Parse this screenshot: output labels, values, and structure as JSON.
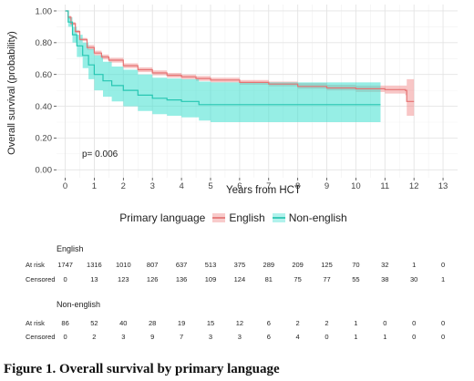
{
  "chart_data": {
    "type": "line",
    "xlabel": "Years from HCT",
    "ylabel": "Overall survival (probability)",
    "xlim": [
      -0.3,
      13.5
    ],
    "ylim": [
      -0.05,
      1.04
    ],
    "x_ticks": [
      0,
      1,
      2,
      3,
      4,
      5,
      6,
      7,
      8,
      9,
      10,
      11,
      12,
      13
    ],
    "x_tick_labels": [
      "0",
      "1",
      "2",
      "3",
      "4",
      "5",
      "6",
      "7",
      "8",
      "9",
      "10",
      "11",
      "12",
      "13"
    ],
    "y_ticks": [
      0,
      0.2,
      0.4,
      0.6,
      0.8,
      1.0
    ],
    "y_tick_labels": [
      "0.00",
      "0.20",
      "0.40",
      "0.60",
      "0.80",
      "1.00"
    ],
    "grid": true,
    "annotation": "p= 0.006",
    "legend_title": "Primary language",
    "legend_position": "bottom",
    "series": [
      {
        "name": "English",
        "color": "#e57373",
        "band_color": "#f08080",
        "x": [
          0,
          0.1,
          0.2,
          0.35,
          0.5,
          0.75,
          1,
          1.25,
          1.5,
          2,
          2.5,
          3,
          3.5,
          4,
          4.5,
          5,
          6,
          7,
          8,
          9,
          10,
          11,
          11.7,
          11.75,
          12
        ],
        "y": [
          1.0,
          0.96,
          0.92,
          0.87,
          0.82,
          0.77,
          0.735,
          0.71,
          0.69,
          0.655,
          0.63,
          0.61,
          0.595,
          0.585,
          0.575,
          0.565,
          0.55,
          0.54,
          0.525,
          0.515,
          0.51,
          0.505,
          0.5,
          0.43,
          0.43
        ],
        "lower": [
          1.0,
          0.95,
          0.91,
          0.86,
          0.81,
          0.755,
          0.72,
          0.695,
          0.675,
          0.64,
          0.615,
          0.595,
          0.58,
          0.57,
          0.56,
          0.55,
          0.535,
          0.525,
          0.51,
          0.5,
          0.49,
          0.48,
          0.47,
          0.34,
          0.34
        ],
        "upper": [
          1.0,
          0.97,
          0.93,
          0.88,
          0.83,
          0.785,
          0.75,
          0.725,
          0.705,
          0.67,
          0.645,
          0.625,
          0.61,
          0.6,
          0.59,
          0.58,
          0.565,
          0.555,
          0.545,
          0.535,
          0.53,
          0.53,
          0.53,
          0.57,
          0.57
        ]
      },
      {
        "name": "Non-english",
        "color": "#26c6b2",
        "band_color": "#40e0d0",
        "x": [
          0,
          0.1,
          0.25,
          0.4,
          0.6,
          0.8,
          1,
          1.3,
          1.6,
          2,
          2.5,
          3,
          3.5,
          4,
          4.6,
          5,
          6,
          7,
          8,
          9,
          10,
          10.85
        ],
        "y": [
          1.0,
          0.93,
          0.85,
          0.78,
          0.72,
          0.66,
          0.6,
          0.56,
          0.53,
          0.5,
          0.47,
          0.45,
          0.44,
          0.43,
          0.41,
          0.41,
          0.41,
          0.41,
          0.41,
          0.41,
          0.41,
          0.41
        ],
        "lower": [
          1.0,
          0.9,
          0.8,
          0.71,
          0.64,
          0.57,
          0.5,
          0.46,
          0.43,
          0.4,
          0.37,
          0.35,
          0.34,
          0.33,
          0.31,
          0.3,
          0.3,
          0.3,
          0.3,
          0.3,
          0.3,
          0.3
        ],
        "upper": [
          1.0,
          0.96,
          0.9,
          0.85,
          0.8,
          0.76,
          0.72,
          0.68,
          0.65,
          0.63,
          0.6,
          0.58,
          0.575,
          0.57,
          0.555,
          0.55,
          0.55,
          0.55,
          0.55,
          0.55,
          0.55,
          0.55
        ]
      }
    ]
  },
  "risk_table": {
    "time_points": [
      0,
      1,
      2,
      3,
      4,
      5,
      6,
      7,
      8,
      9,
      10,
      11,
      12,
      13
    ],
    "groups": [
      {
        "title": "English",
        "rows": [
          {
            "label": "At risk",
            "values": [
              "1747",
              "1316",
              "1010",
              "807",
              "637",
              "513",
              "375",
              "289",
              "209",
              "125",
              "70",
              "32",
              "1",
              "0"
            ]
          },
          {
            "label": "Censored",
            "values": [
              "0",
              "13",
              "123",
              "126",
              "136",
              "109",
              "124",
              "81",
              "75",
              "77",
              "55",
              "38",
              "30",
              "1"
            ]
          }
        ]
      },
      {
        "title": "Non-english",
        "rows": [
          {
            "label": "At risk",
            "values": [
              "86",
              "52",
              "40",
              "28",
              "19",
              "15",
              "12",
              "6",
              "2",
              "2",
              "1",
              "0",
              "0",
              "0"
            ]
          },
          {
            "label": "Censored",
            "values": [
              "0",
              "2",
              "3",
              "9",
              "7",
              "3",
              "3",
              "6",
              "4",
              "0",
              "1",
              "1",
              "0",
              "0"
            ]
          }
        ]
      }
    ]
  },
  "caption": "Figure 1. Overall survival by primary language"
}
